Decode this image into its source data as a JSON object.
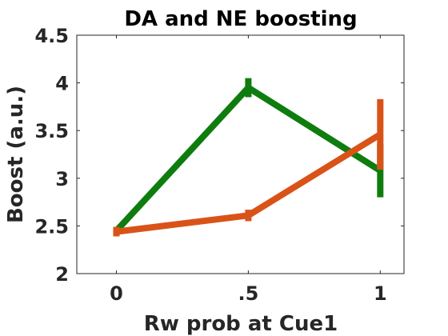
{
  "chart_data": {
    "type": "line",
    "title": "DA and NE boosting",
    "xlabel": "Rw prob at Cue1",
    "ylabel": "Boost (a.u.)",
    "x": [
      0,
      0.5,
      1
    ],
    "xticks": [
      {
        "value": 0,
        "label": "0"
      },
      {
        "value": 0.5,
        "label": ".5"
      },
      {
        "value": 1,
        "label": "1"
      }
    ],
    "yticks": [
      {
        "value": 2,
        "label": "2"
      },
      {
        "value": 2.5,
        "label": "2.5"
      },
      {
        "value": 3,
        "label": "3"
      },
      {
        "value": 3.5,
        "label": "3.5"
      },
      {
        "value": 4,
        "label": "4"
      },
      {
        "value": 4.5,
        "label": "4.5"
      }
    ],
    "xlim": [
      -0.15,
      1.09
    ],
    "ylim": [
      2,
      4.5
    ],
    "grid": false,
    "series": [
      {
        "color": "#0e7d0e",
        "values": [
          2.45,
          3.95,
          3.08
        ],
        "errors": [
          0.03,
          0.1,
          0.28
        ]
      },
      {
        "color": "#d95319",
        "values": [
          2.44,
          2.61,
          3.46
        ],
        "errors": [
          0.05,
          0.06,
          0.37
        ]
      }
    ]
  }
}
